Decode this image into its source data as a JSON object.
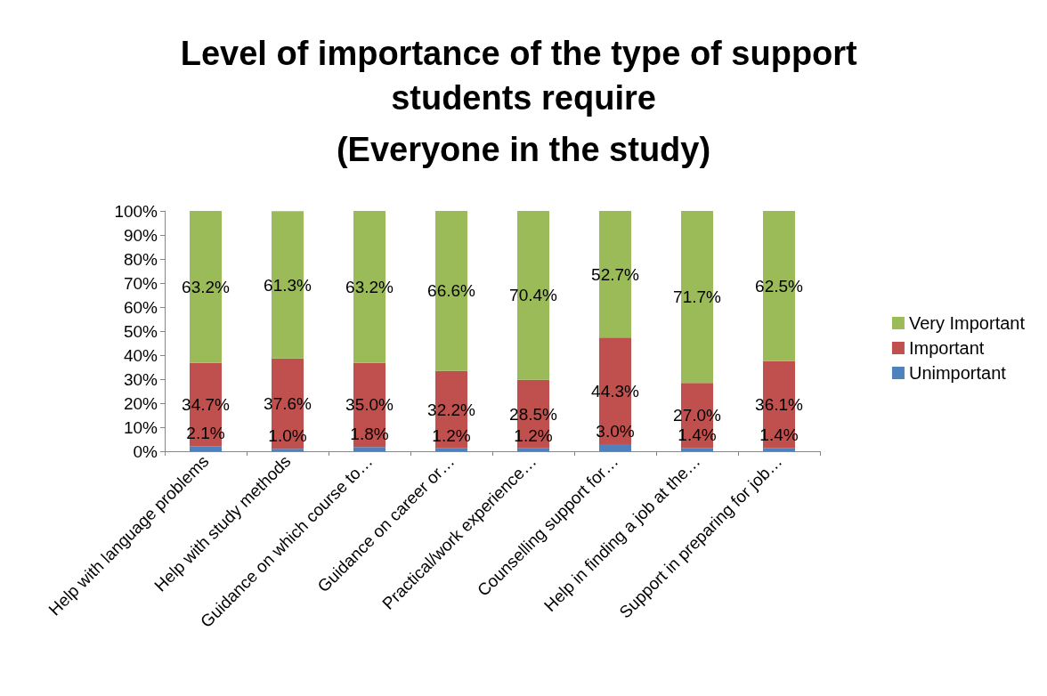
{
  "chart_data": {
    "type": "bar",
    "title": "Level of importance of the type of support students require",
    "subtitle": "(Everyone in the study)",
    "categories": [
      "Help with language problems",
      "Help with study methods",
      "Guidance on which course to…",
      "Guidance on career or…",
      "Practical/work experience…",
      "Counselling support for…",
      "Help in finding a job at the…",
      "Support in preparing for job…"
    ],
    "series": [
      {
        "name": "Unimportant",
        "color": "#4f81bd",
        "values": [
          2.1,
          1.0,
          1.8,
          1.2,
          1.2,
          3.0,
          1.4,
          1.4
        ],
        "value_labels": [
          "2.1%",
          "1.0%",
          "1.8%",
          "1.2%",
          "1.2%",
          "3.0%",
          "1.4%",
          "1.4%"
        ]
      },
      {
        "name": "Important",
        "color": "#c0504d",
        "values": [
          34.7,
          37.6,
          35.0,
          32.2,
          28.5,
          44.3,
          27.0,
          36.1
        ],
        "value_labels": [
          "34.7%",
          "37.6%",
          "35.0%",
          "32.2%",
          "28.5%",
          "44.3%",
          "27.0%",
          "36.1%"
        ]
      },
      {
        "name": "Very Important",
        "color": "#9bbb59",
        "values": [
          63.2,
          61.3,
          63.2,
          66.6,
          70.4,
          52.7,
          71.7,
          62.5
        ],
        "value_labels": [
          "63.2%",
          "61.3%",
          "63.2%",
          "66.6%",
          "70.4%",
          "52.7%",
          "71.7%",
          "62.5%"
        ]
      }
    ],
    "stacked": true,
    "legend": "right",
    "grid": false,
    "ylim": [
      0,
      100
    ],
    "yticks": [
      {
        "value": 0,
        "label": "0%"
      },
      {
        "value": 10,
        "label": "10%"
      },
      {
        "value": 20,
        "label": "20%"
      },
      {
        "value": 30,
        "label": "30%"
      },
      {
        "value": 40,
        "label": "40%"
      },
      {
        "value": 50,
        "label": "50%"
      },
      {
        "value": 60,
        "label": "60%"
      },
      {
        "value": 70,
        "label": "70%"
      },
      {
        "value": 80,
        "label": "80%"
      },
      {
        "value": 90,
        "label": "90%"
      },
      {
        "value": 100,
        "label": "100%"
      }
    ]
  }
}
